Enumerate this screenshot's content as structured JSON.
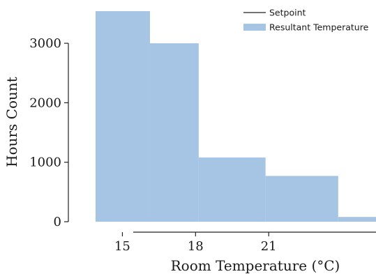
{
  "chart_data": {
    "type": "area",
    "xlabel": "Room Temperature (°C)",
    "ylabel": "Hours Count",
    "xlim": [
      13.9,
      25.4
    ],
    "ylim": [
      0,
      3540
    ],
    "xticks": [
      15,
      18,
      21
    ],
    "yticks": [
      0,
      1000,
      2000,
      3000
    ],
    "legend_position": "top-right",
    "series": [
      {
        "name": "Setpoint",
        "kind": "line",
        "color": "#222222",
        "values": []
      },
      {
        "name": "Resultant Temperature",
        "kind": "histogram",
        "color": "#a6c4e4",
        "bins": [
          {
            "x0": 13.9,
            "x1": 16.13,
            "y": 3540
          },
          {
            "x0": 16.13,
            "x1": 18.13,
            "y": 3000
          },
          {
            "x0": 18.13,
            "x1": 20.87,
            "y": 1080
          },
          {
            "x0": 20.87,
            "x1": 23.85,
            "y": 770
          },
          {
            "x0": 23.85,
            "x1": 25.4,
            "y": 80
          }
        ]
      }
    ]
  }
}
